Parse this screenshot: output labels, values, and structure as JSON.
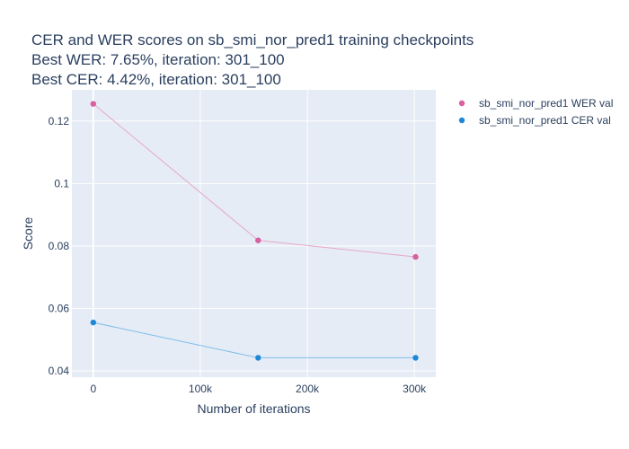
{
  "chart_data": {
    "type": "line",
    "title": [
      "CER and WER scores on sb_smi_nor_pred1 training checkpoints",
      "Best WER: 7.65%,  iteration: 301_100",
      "Best CER: 4.42%, iteration: 301_100"
    ],
    "xlabel": "Number of iterations",
    "ylabel": "Score",
    "xlim": [
      -20000,
      320000
    ],
    "ylim": [
      0.038,
      0.13
    ],
    "x_ticks": [
      0,
      100000,
      200000,
      300000
    ],
    "x_tick_labels": [
      "0",
      "100k",
      "200k",
      "300k"
    ],
    "y_ticks": [
      0.04,
      0.06,
      0.08,
      0.1,
      0.12
    ],
    "y_tick_labels": [
      "0.04",
      "0.06",
      "0.08",
      "0.1",
      "0.12"
    ],
    "grid": true,
    "legend_position": "top-right, outside plot",
    "background_color": "#e5ecf6",
    "series": [
      {
        "name": "sb_smi_nor_pred1 WER val",
        "color": "#d95f9e",
        "line_color": "#e8a7c9",
        "x": [
          0,
          154000,
          301100
        ],
        "y": [
          0.1255,
          0.0818,
          0.0765
        ]
      },
      {
        "name": "sb_smi_nor_pred1 CER val",
        "color": "#1f88d6",
        "line_color": "#7fbde9",
        "x": [
          0,
          154000,
          301100
        ],
        "y": [
          0.0555,
          0.0442,
          0.0442
        ]
      }
    ]
  }
}
